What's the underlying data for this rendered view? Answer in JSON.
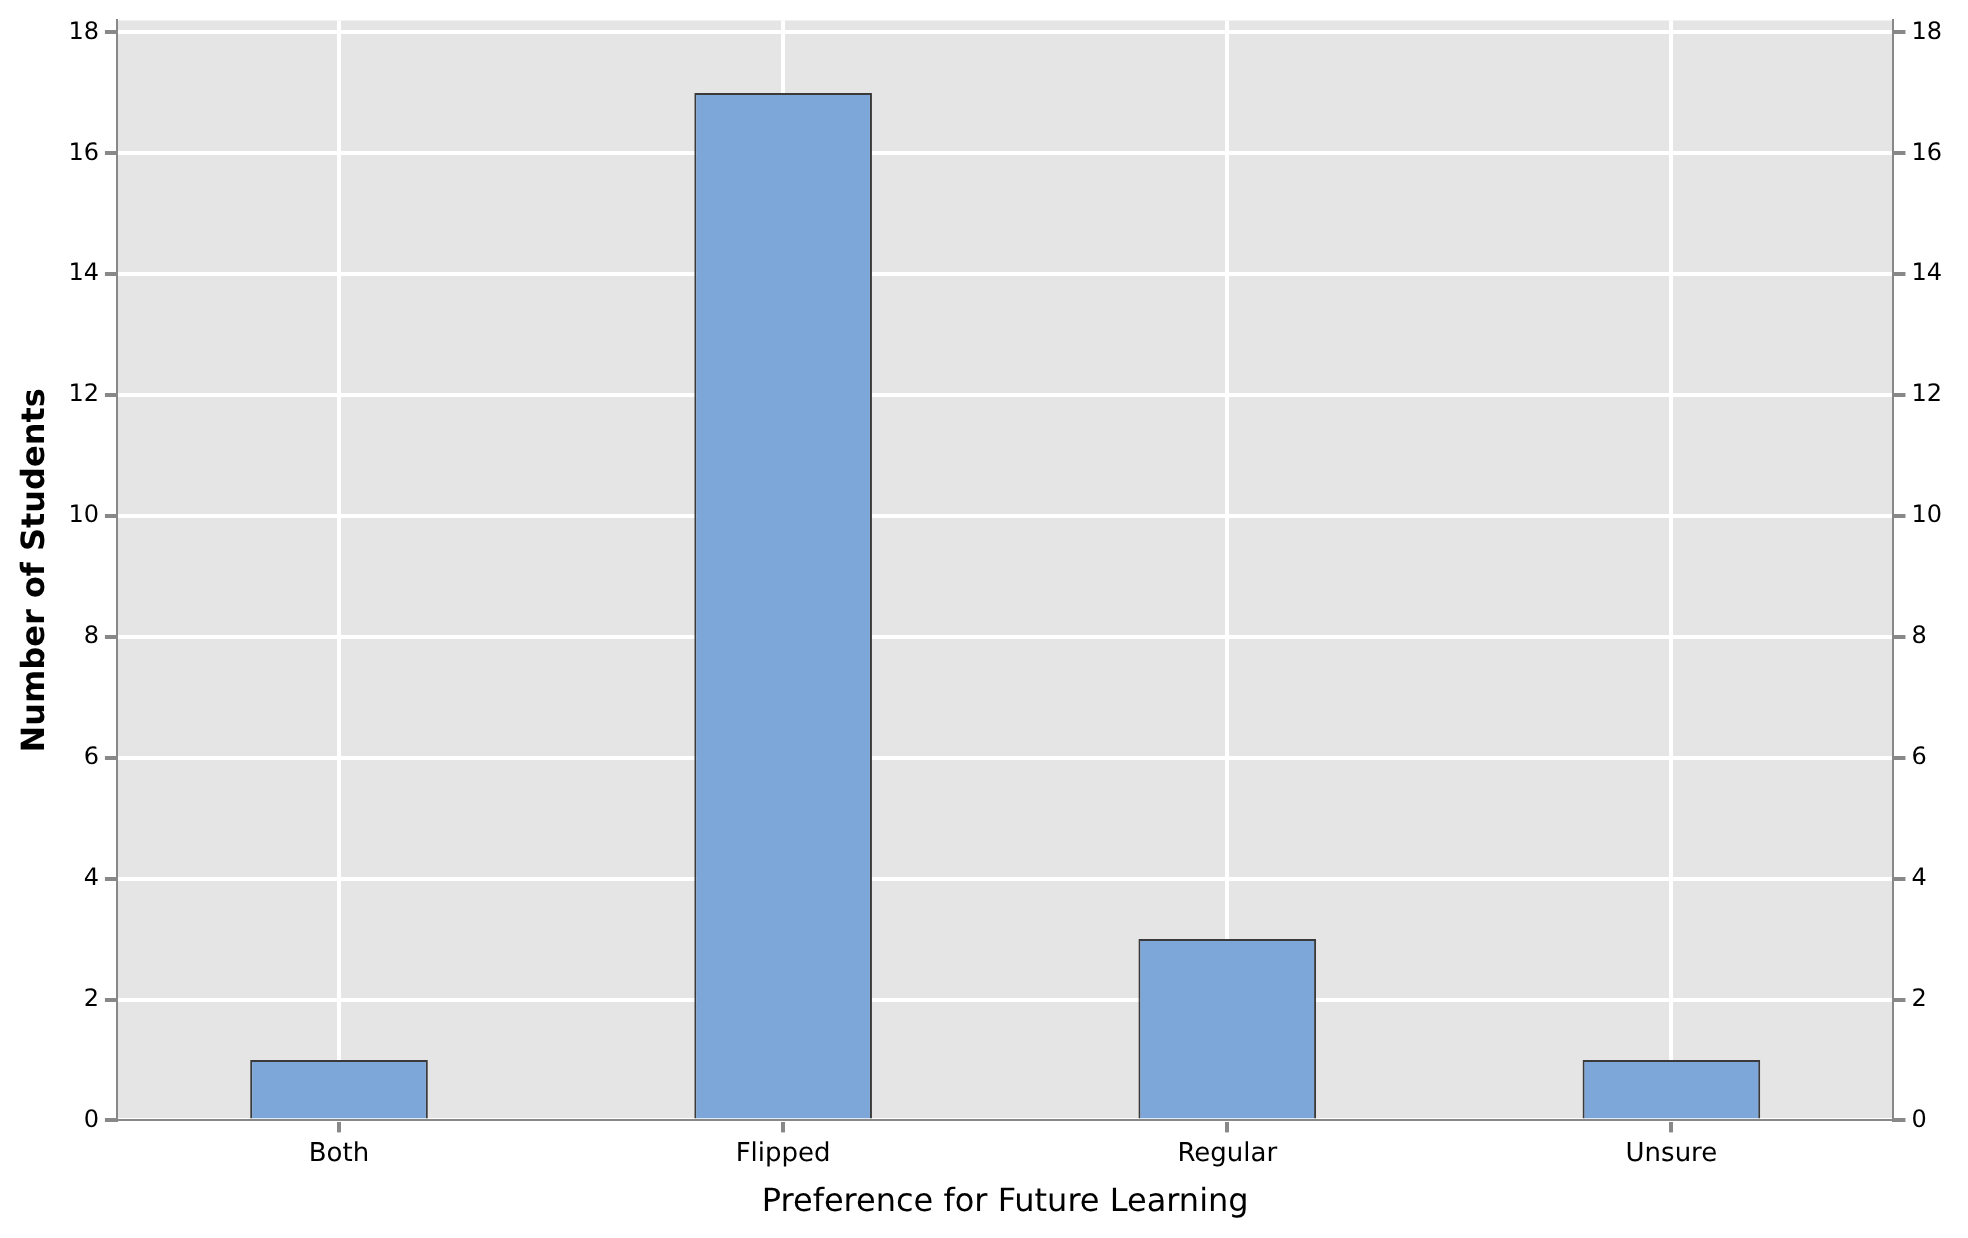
{
  "chart_data": {
    "type": "bar",
    "xlabel": "Preference for Future Learning",
    "ylabel": "Number of Students",
    "categories": [
      "Both",
      "Flipped",
      "Regular",
      "Unsure"
    ],
    "values": [
      1,
      17,
      3,
      1
    ],
    "color": "#7da7d9",
    "ylim": [
      0,
      18.2
    ],
    "yticks": [
      0,
      2,
      4,
      6,
      8,
      10,
      12,
      14,
      16,
      18
    ],
    "y2lim": [
      0,
      18.2
    ],
    "y2ticks": [
      0,
      2,
      4,
      6,
      8,
      10,
      12,
      14,
      16,
      18
    ],
    "grid": true
  }
}
